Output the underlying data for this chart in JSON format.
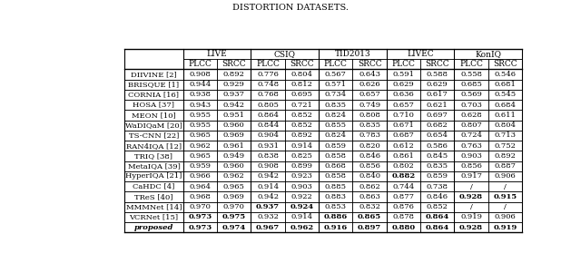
{
  "title": "DISTORTION DATASETS.",
  "col_groups": [
    "LIVE",
    "CSIQ",
    "TID2013",
    "LIVEC",
    "KonIQ"
  ],
  "sub_cols": [
    "PLCC",
    "SRCC"
  ],
  "row_labels": [
    "DIIVINE [2]",
    "BRISQUE [1]",
    "CORNIA [16]",
    "HOSA [37]",
    "MEON [10]",
    "WaDIQaM [20]",
    "TS-CNN [22]",
    "RAN4IQA [12]",
    "TRIQ [38]",
    "MetaIQA [39]",
    "HyperIQA [21]",
    "CaHDC [4]",
    "TReS [40]",
    "MMMNet [14]",
    "VCRNet [15]",
    "proposed"
  ],
  "data": [
    [
      0.908,
      0.892,
      0.776,
      0.804,
      0.567,
      0.643,
      0.591,
      0.588,
      0.558,
      0.546
    ],
    [
      0.944,
      0.929,
      0.748,
      0.812,
      0.571,
      0.626,
      0.629,
      0.629,
      0.685,
      0.681
    ],
    [
      0.938,
      0.937,
      0.768,
      0.695,
      0.734,
      0.657,
      0.636,
      0.617,
      0.569,
      0.545
    ],
    [
      0.943,
      0.942,
      0.805,
      0.721,
      0.835,
      0.749,
      0.657,
      0.621,
      0.703,
      0.684
    ],
    [
      0.955,
      0.951,
      0.864,
      0.852,
      0.824,
      0.808,
      0.71,
      0.697,
      0.628,
      0.611
    ],
    [
      0.955,
      0.96,
      0.844,
      0.852,
      0.855,
      0.835,
      0.671,
      0.682,
      0.807,
      0.804
    ],
    [
      0.965,
      0.969,
      0.904,
      0.892,
      0.824,
      0.783,
      0.687,
      0.654,
      0.724,
      0.713
    ],
    [
      0.962,
      0.961,
      0.931,
      0.914,
      0.859,
      0.82,
      0.612,
      0.586,
      0.763,
      0.752
    ],
    [
      0.965,
      0.949,
      0.838,
      0.825,
      0.858,
      0.846,
      0.861,
      0.845,
      0.903,
      0.892
    ],
    [
      0.959,
      0.96,
      0.908,
      0.899,
      0.868,
      0.856,
      0.802,
      0.835,
      0.856,
      0.887
    ],
    [
      0.966,
      0.962,
      0.942,
      0.923,
      0.858,
      0.84,
      0.882,
      0.859,
      0.917,
      0.906
    ],
    [
      0.964,
      0.965,
      0.914,
      0.903,
      0.885,
      0.862,
      0.744,
      0.738,
      null,
      null
    ],
    [
      0.968,
      0.969,
      0.942,
      0.922,
      0.883,
      0.863,
      0.877,
      0.846,
      0.928,
      0.915
    ],
    [
      0.97,
      0.97,
      0.937,
      0.924,
      0.853,
      0.832,
      0.876,
      0.852,
      null,
      null
    ],
    [
      0.973,
      0.975,
      0.932,
      0.914,
      0.886,
      0.865,
      0.878,
      0.864,
      0.919,
      0.906
    ],
    [
      0.973,
      0.974,
      0.967,
      0.962,
      0.916,
      0.897,
      0.88,
      0.864,
      0.928,
      0.919
    ]
  ],
  "bold_cells": {
    "0": [],
    "1": [],
    "2": [],
    "3": [],
    "4": [],
    "5": [],
    "6": [],
    "7": [],
    "8": [],
    "9": [],
    "10": [
      6
    ],
    "11": [],
    "12": [
      8,
      9
    ],
    "13": [
      2,
      3
    ],
    "14": [
      0,
      1,
      4,
      5,
      7
    ],
    "15": [
      0,
      1,
      2,
      3,
      4,
      5,
      6,
      7,
      8,
      9
    ]
  },
  "slash_rows": [
    11,
    13
  ],
  "slash_cols": [
    8,
    9
  ],
  "title_fontsize": 7,
  "header_fontsize": 6.5,
  "cell_fontsize": 6.0
}
